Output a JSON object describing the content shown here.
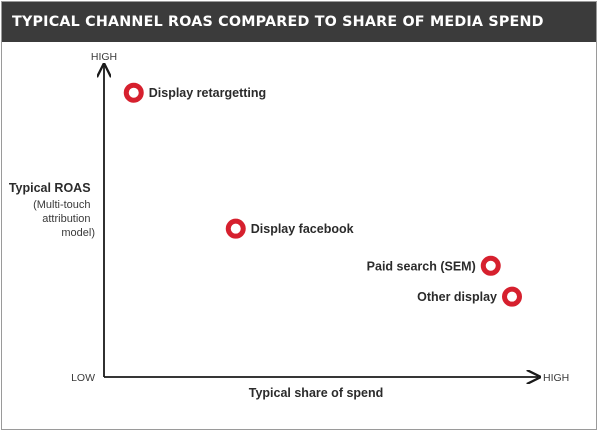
{
  "chart_data": {
    "type": "scatter",
    "title": "TYPICAL CHANNEL ROAS COMPARED TO SHARE OF MEDIA SPEND",
    "xlabel": "Typical share of spend",
    "ylabel_lines": [
      "Typical ROAS",
      "(Multi-touch",
      "attribution",
      "model)"
    ],
    "x_ticks": {
      "low": "LOW",
      "high": "HIGH"
    },
    "y_ticks": {
      "low": "LOW",
      "high": "HIGH"
    },
    "xlim": [
      0,
      1
    ],
    "ylim": [
      0,
      1
    ],
    "grid": false,
    "legend": "none",
    "points": [
      {
        "label": "Display retargetting",
        "x": 0.07,
        "y": 0.92
      },
      {
        "label": "Display facebook",
        "x": 0.31,
        "y": 0.48
      },
      {
        "label": "Paid search (SEM)",
        "x": 0.91,
        "y": 0.36
      },
      {
        "label": "Other display",
        "x": 0.96,
        "y": 0.26
      }
    ]
  },
  "colors": {
    "header_bg": "#3b3b3b",
    "header_text": "#ffffff",
    "marker": "#d6202e",
    "axis": "#1a1a1a",
    "text": "#2b2b2b",
    "muted_text": "#3a3a3a"
  }
}
